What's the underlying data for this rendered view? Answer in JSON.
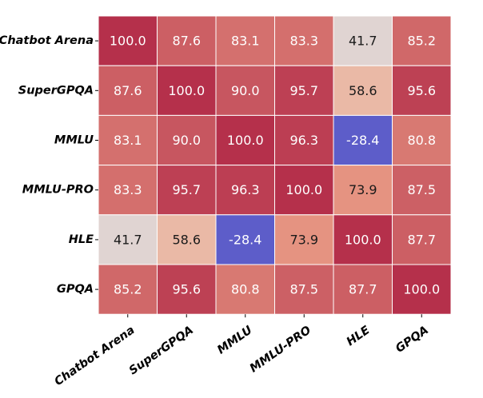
{
  "chart_data": {
    "type": "heatmap",
    "title": "",
    "xlabel": "",
    "ylabel": "",
    "row_labels": [
      "Chatbot Arena",
      "SuperGPQA",
      "MMLU",
      "MMLU-PRO",
      "HLE",
      "GPQA"
    ],
    "col_labels": [
      "Chatbot Arena",
      "SuperGPQA",
      "MMLU",
      "MMLU-PRO",
      "HLE",
      "GPQA"
    ],
    "values": [
      [
        100.0,
        87.6,
        83.1,
        83.3,
        41.7,
        85.2
      ],
      [
        87.6,
        100.0,
        90.0,
        95.7,
        58.6,
        95.6
      ],
      [
        83.1,
        90.0,
        100.0,
        96.3,
        -28.4,
        80.8
      ],
      [
        83.3,
        95.7,
        96.3,
        100.0,
        73.9,
        87.5
      ],
      [
        41.7,
        58.6,
        -28.4,
        73.9,
        100.0,
        87.7
      ],
      [
        85.2,
        95.6,
        80.8,
        87.5,
        87.7,
        100.0
      ]
    ],
    "value_format": "0.1f",
    "colormap": "coolwarm",
    "color_scale_range": [
      -28.4,
      100.0
    ],
    "colorbar": false,
    "gridlines": "white cell borders",
    "colors": {
      "low": "#5d5dc9",
      "mid": "#dcdde2",
      "high": "#b5304b",
      "text_light": "#ffffff",
      "text_dark": "#1a1a1a",
      "cell_border": "#ffffff"
    }
  }
}
